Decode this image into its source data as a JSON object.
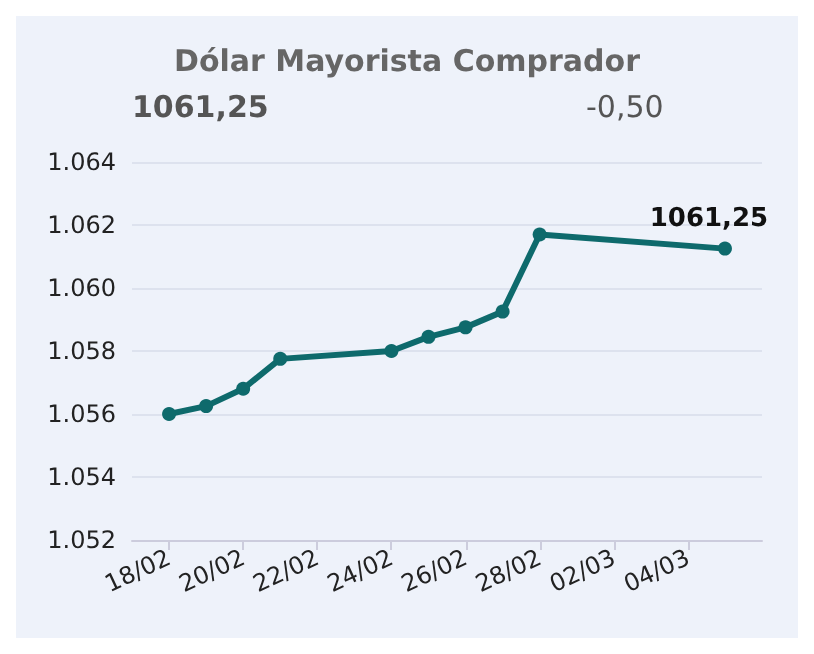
{
  "chart_data": {
    "type": "line",
    "title": "Dólar Mayorista Comprador",
    "annotations": [
      "1061,25",
      "-0,50"
    ],
    "x": [
      "--02-18",
      "--02-19",
      "--02-20",
      "--02-21",
      "--02-24",
      "--02-25",
      "--02-26",
      "--02-27",
      "--02-28",
      "--03-05"
    ],
    "series": [
      {
        "color": "#0e6a6c",
        "values": [
          1056.0,
          1056.25,
          1056.8,
          1057.75,
          1058.0,
          1058.45,
          1058.75,
          1059.25,
          1061.7,
          1061.25
        ],
        "value_labels": [
          null,
          null,
          null,
          null,
          null,
          null,
          null,
          null,
          null,
          "1061,25"
        ]
      }
    ],
    "xlim": [
      "--02-17",
      "--03-06"
    ],
    "xticks": [
      {
        "value": "--02-18",
        "label": "18/02"
      },
      {
        "value": "--02-20",
        "label": "20/02"
      },
      {
        "value": "--02-22",
        "label": "22/02"
      },
      {
        "value": "--02-24",
        "label": "24/02"
      },
      {
        "value": "--02-26",
        "label": "26/02"
      },
      {
        "value": "--02-28",
        "label": "28/02"
      },
      {
        "value": "--03-02",
        "label": "02/03"
      },
      {
        "value": "--03-04",
        "label": "04/03"
      }
    ],
    "ylim": [
      1052,
      1064
    ],
    "yticks": [
      {
        "value": 1052,
        "label": "1.052"
      },
      {
        "value": 1054,
        "label": "1.054"
      },
      {
        "value": 1056,
        "label": "1.056"
      },
      {
        "value": 1058,
        "label": "1.058"
      },
      {
        "value": 1060,
        "label": "1.060"
      },
      {
        "value": 1062,
        "label": "1.062"
      },
      {
        "value": 1064,
        "label": "1.064"
      }
    ],
    "grid": "y",
    "marker": "circle",
    "line_style": "solid"
  }
}
